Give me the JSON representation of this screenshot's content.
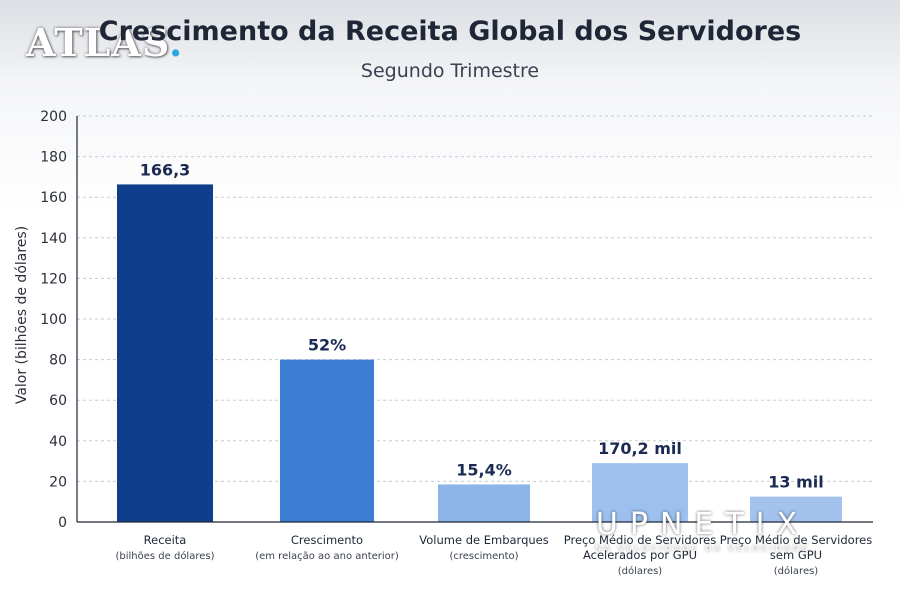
{
  "watermarks": {
    "atlas": "ATLAS",
    "atlas_dot": ".",
    "upnetix": "UPNETIX",
    "upnetix_tag": "NA VELOCIDADE DA VELOCIDADE"
  },
  "colors": {
    "background_top": "#dcdfe4",
    "grid": "#c8cbd1",
    "axis": "#1f2636",
    "label": "#1a2a52"
  },
  "chart_data": {
    "type": "bar",
    "title": "Crescimento da Receita Global dos Servidores",
    "subtitle": "Segundo Trimestre",
    "ylabel": "Valor (bilhões de dólares)",
    "xlabel": "",
    "ylim": [
      0,
      200
    ],
    "yticks": [
      0,
      20,
      40,
      60,
      80,
      100,
      120,
      140,
      160,
      180,
      200
    ],
    "grid": true,
    "categories": [
      "Receita",
      "Crescimento",
      "Volume de Embarques",
      "Preço Médio de Servidores Acelerados por GPU",
      "Preço Médio de Servidores sem GPU"
    ],
    "category_notes": [
      "(bilhões de dólares)",
      "(em relação ao ano anterior)",
      "(crescimento)",
      "(dólares)",
      "(dólares)"
    ],
    "values": [
      166.3,
      80,
      18.5,
      29,
      12.5
    ],
    "data_labels": [
      "166,3",
      "52%",
      "15,4%",
      "170,2 mil",
      "13 mil"
    ],
    "colors": [
      "#0f3f8c",
      "#3b7ed3",
      "#8eb5e8",
      "#9dc0ee",
      "#a3c3ee"
    ]
  }
}
